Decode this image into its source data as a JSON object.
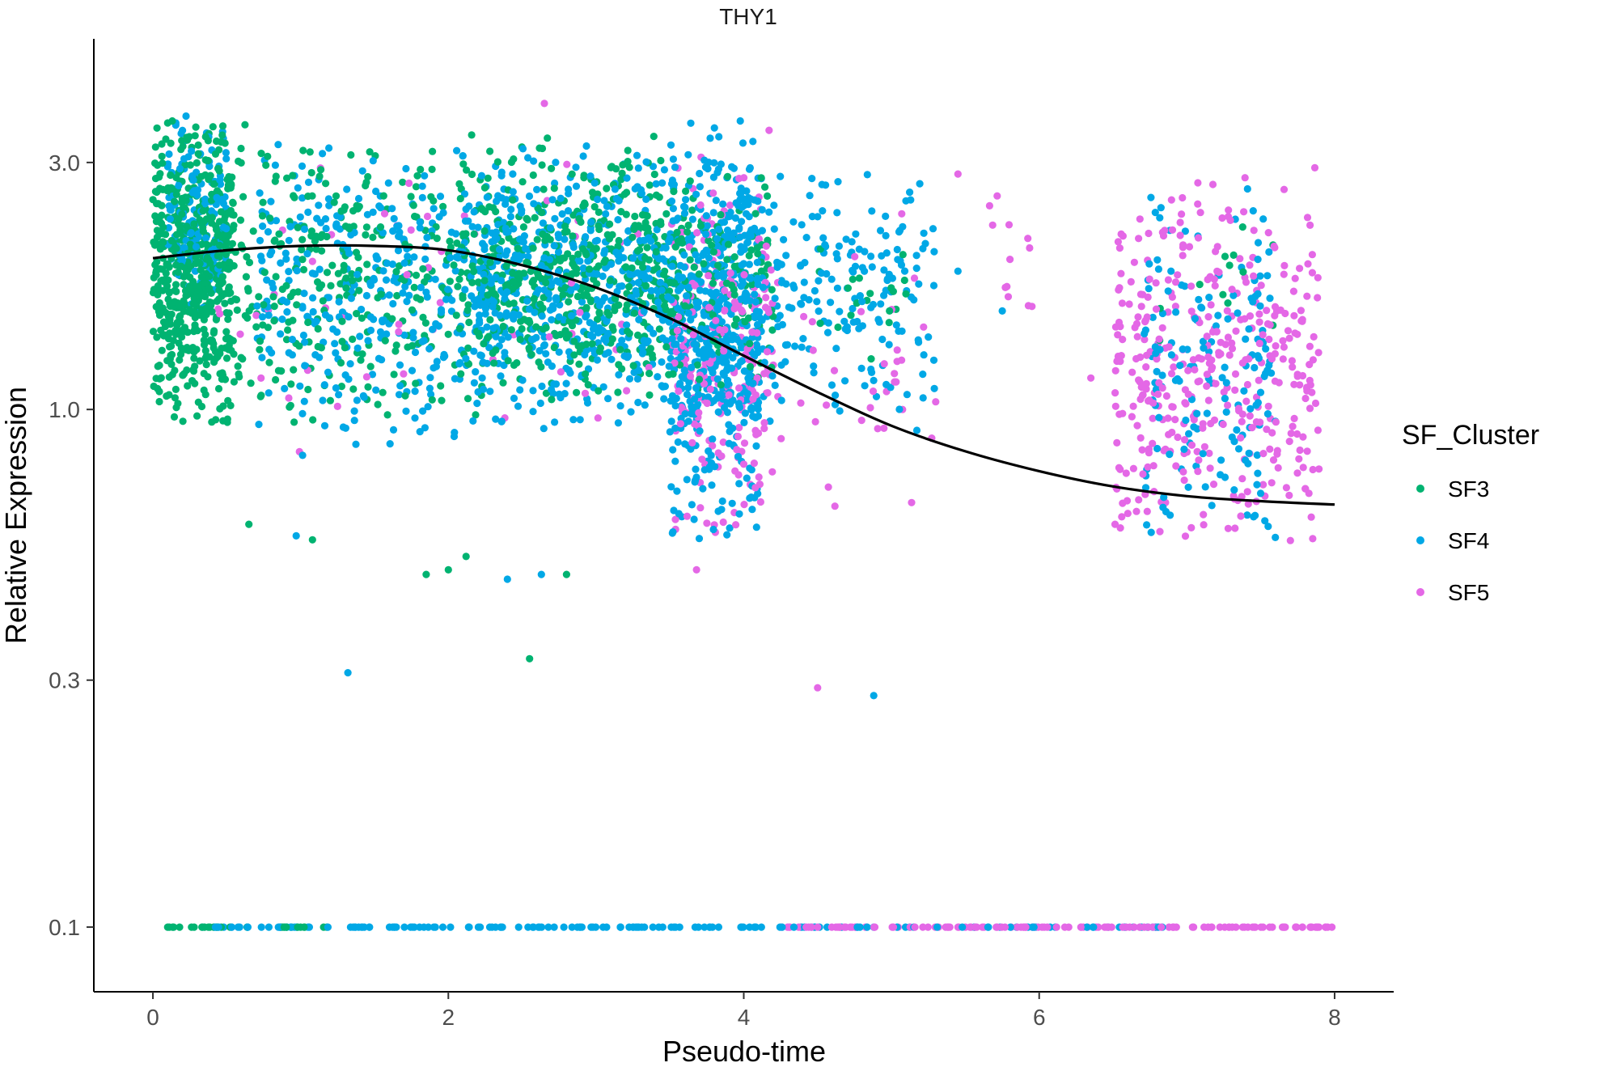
{
  "chart_data": {
    "type": "scatter",
    "title": "THY1",
    "xlabel": "Pseudo-time",
    "ylabel": "Relative Expression",
    "xlim": [
      -0.4,
      8.4
    ],
    "ylim": [
      0.075,
      5.2
    ],
    "y_scale": "log10",
    "x_ticks": [
      0,
      2,
      4,
      6,
      8
    ],
    "x_tick_labels": [
      "0",
      "2",
      "4",
      "6",
      "8"
    ],
    "y_ticks": [
      0.1,
      0.3,
      1.0,
      3.0
    ],
    "y_tick_labels": [
      "0.1",
      "0.3",
      "1.0",
      "3.0"
    ],
    "grid": false,
    "legend": {
      "title": "SF_Cluster",
      "position": "right"
    },
    "colors": {
      "SF3": "#00b371",
      "SF4": "#00a8e6",
      "SF5": "#e468e6",
      "trend": "#000000"
    },
    "series": [
      {
        "name": "SF3",
        "clusters": [
          {
            "x": [
              0.0,
              0.55
            ],
            "y": [
              0.9,
              3.8
            ],
            "n": 600
          },
          {
            "x": [
              0.55,
              2.2
            ],
            "y": [
              0.9,
              3.6
            ],
            "n": 320
          },
          {
            "x": [
              2.2,
              3.6
            ],
            "y": [
              1.0,
              3.4
            ],
            "n": 520
          },
          {
            "x": [
              3.6,
              4.2
            ],
            "y": [
              1.0,
              3.0
            ],
            "n": 120
          },
          {
            "x": [
              4.5,
              5.1
            ],
            "y": [
              1.2,
              2.2
            ],
            "n": 20
          },
          {
            "x": [
              6.8,
              7.6
            ],
            "y": [
              1.3,
              2.4
            ],
            "n": 12
          }
        ],
        "points": [
          [
            0.65,
            0.6
          ],
          [
            1.08,
            0.56
          ],
          [
            1.85,
            0.48
          ],
          [
            2.0,
            0.49
          ],
          [
            2.12,
            0.52
          ],
          [
            2.55,
            0.33
          ],
          [
            2.8,
            0.48
          ]
        ],
        "baseline": {
          "x": [
            0.1,
            1.2
          ],
          "y": 0.1,
          "n": 30
        }
      },
      {
        "name": "SF4",
        "clusters": [
          {
            "x": [
              0.1,
              0.5
            ],
            "y": [
              1.5,
              3.8
            ],
            "n": 150
          },
          {
            "x": [
              0.7,
              2.4
            ],
            "y": [
              0.8,
              3.5
            ],
            "n": 380
          },
          {
            "x": [
              2.2,
              3.5
            ],
            "y": [
              0.9,
              3.4
            ],
            "n": 500
          },
          {
            "x": [
              3.5,
              4.1
            ],
            "y": [
              0.55,
              3.8
            ],
            "n": 560
          },
          {
            "x": [
              4.1,
              5.3
            ],
            "y": [
              0.9,
              3.0
            ],
            "n": 200
          },
          {
            "x": [
              6.7,
              7.6
            ],
            "y": [
              0.5,
              2.9
            ],
            "n": 160
          }
        ],
        "points": [
          [
            1.32,
            0.31
          ],
          [
            4.88,
            0.28
          ],
          [
            0.97,
            0.57
          ],
          [
            2.4,
            0.47
          ],
          [
            2.63,
            0.48
          ],
          [
            5.45,
            1.85
          ],
          [
            5.75,
            1.55
          ]
        ],
        "baseline": {
          "x": [
            0.3,
            6.9
          ],
          "y": 0.1,
          "n": 170
        }
      },
      {
        "name": "SF5",
        "clusters": [
          {
            "x": [
              0.4,
              3.4
            ],
            "y": [
              0.7,
              3.5
            ],
            "n": 55
          },
          {
            "x": [
              3.5,
              4.2
            ],
            "y": [
              0.5,
              3.5
            ],
            "n": 240
          },
          {
            "x": [
              4.2,
              5.3
            ],
            "y": [
              0.6,
              2.6
            ],
            "n": 35
          },
          {
            "x": [
              5.6,
              6.1
            ],
            "y": [
              1.4,
              2.8
            ],
            "n": 12
          },
          {
            "x": [
              6.5,
              7.9
            ],
            "y": [
              0.5,
              3.0
            ],
            "n": 400
          }
        ],
        "points": [
          [
            4.5,
            0.29
          ],
          [
            2.65,
            3.9
          ],
          [
            5.45,
            2.85
          ],
          [
            6.35,
            1.15
          ],
          [
            3.68,
            0.49
          ]
        ],
        "baseline": {
          "x": [
            4.2,
            8.0
          ],
          "y": 0.1,
          "n": 140
        }
      }
    ],
    "trend_line": {
      "x": [
        0.0,
        0.5,
        1.0,
        1.5,
        2.0,
        2.5,
        3.0,
        3.5,
        4.0,
        4.5,
        5.0,
        5.5,
        6.0,
        6.5,
        7.0,
        7.5,
        8.0
      ],
      "y": [
        1.96,
        2.03,
        2.07,
        2.07,
        2.03,
        1.9,
        1.72,
        1.5,
        1.27,
        1.08,
        0.93,
        0.83,
        0.76,
        0.71,
        0.68,
        0.665,
        0.655
      ]
    }
  }
}
